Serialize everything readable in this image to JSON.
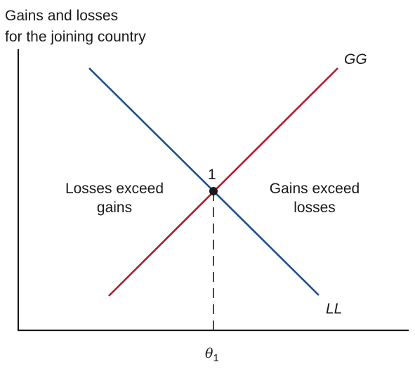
{
  "yaxis_title": [
    "Gains and losses",
    "for the joining country"
  ],
  "curves": {
    "gg": {
      "label": "GG",
      "color": "#b01c2e"
    },
    "ll": {
      "label": "LL",
      "color": "#1b4f8f"
    }
  },
  "intersection": {
    "label": "1"
  },
  "regions": {
    "left": [
      "Losses exceed",
      "gains"
    ],
    "right": [
      "Gains exceed",
      "losses"
    ]
  },
  "xtick": {
    "symbol": "θ",
    "subscript": "1"
  },
  "colors": {
    "axis": "#1a1a1a",
    "point": "#1a1a1a"
  }
}
